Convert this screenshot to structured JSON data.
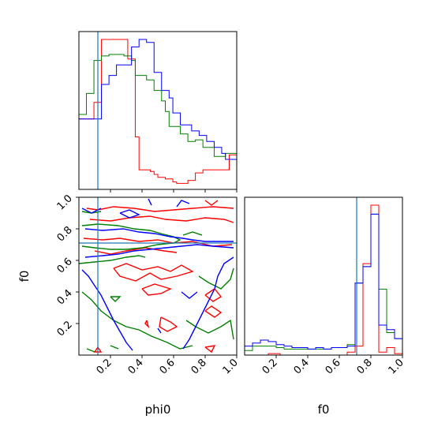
{
  "chart_data": {
    "type": "corner",
    "parameters": [
      "phi0",
      "f0"
    ],
    "axis_range": [
      0,
      1
    ],
    "ticks": [
      0.2,
      0.4,
      0.6,
      0.8,
      1.0
    ],
    "tick_labels": [
      "0.2",
      "0.4",
      "0.6",
      "0.8",
      "1.0"
    ],
    "truth": {
      "phi0": 0.12,
      "f0": 0.71,
      "color": "#1f77b4"
    },
    "series": [
      {
        "color": "#ff0000",
        "phi0_hist": [
          0.47,
          0.47,
          0.47,
          0.47,
          0.58,
          0.58,
          1.0,
          1.0,
          1.0,
          1.0,
          1.0,
          1.0,
          1.0,
          0.87,
          0.87,
          0.35,
          0.13,
          0.13,
          0.13,
          0.12,
          0.1,
          0.08,
          0.08,
          0.07,
          0.07,
          0.05,
          0.04,
          0.04,
          0.04,
          0.06,
          0.06,
          0.11,
          0.11,
          0.13,
          0.13,
          0.13,
          0.13,
          0.13,
          0.13,
          0.13,
          0.23,
          0.23
        ],
        "f0_hist": [
          0,
          0,
          0,
          0,
          0,
          0,
          0.01,
          0.01,
          0.01,
          0,
          0,
          0,
          0,
          0,
          0,
          0,
          0,
          0,
          0,
          0,
          0,
          0,
          0,
          0,
          0,
          0,
          0.02,
          0.02,
          0.06,
          0.06,
          0.61,
          0.61,
          1.0,
          1.0,
          0.02,
          0.02,
          0.05,
          0.05,
          0.01,
          0.01
        ],
        "contours": [
          [
            [
              0.05,
              0.93
            ],
            [
              0.12,
              0.92
            ],
            [
              0.22,
              0.94
            ],
            [
              0.35,
              0.93
            ],
            [
              0.48,
              0.91
            ],
            [
              0.6,
              0.92
            ],
            [
              0.72,
              0.93
            ],
            [
              0.85,
              0.94
            ],
            [
              0.98,
              0.93
            ]
          ],
          [
            [
              0.07,
              0.86
            ],
            [
              0.2,
              0.85
            ],
            [
              0.32,
              0.87
            ],
            [
              0.45,
              0.88
            ],
            [
              0.55,
              0.86
            ],
            [
              0.68,
              0.85
            ],
            [
              0.8,
              0.87
            ],
            [
              0.92,
              0.86
            ],
            [
              0.98,
              0.84
            ]
          ],
          [
            [
              0.03,
              0.74
            ],
            [
              0.15,
              0.73
            ],
            [
              0.26,
              0.74
            ],
            [
              0.38,
              0.72
            ],
            [
              0.5,
              0.73
            ],
            [
              0.6,
              0.71
            ],
            [
              0.72,
              0.72
            ],
            [
              0.85,
              0.69
            ],
            [
              0.97,
              0.7
            ]
          ],
          [
            [
              0.1,
              0.66
            ],
            [
              0.2,
              0.64
            ],
            [
              0.3,
              0.66
            ],
            [
              0.42,
              0.68
            ],
            [
              0.54,
              0.66
            ],
            [
              0.62,
              0.65
            ]
          ],
          [
            [
              0.22,
              0.55
            ],
            [
              0.3,
              0.58
            ],
            [
              0.4,
              0.54
            ],
            [
              0.5,
              0.56
            ],
            [
              0.58,
              0.53
            ],
            [
              0.65,
              0.57
            ],
            [
              0.72,
              0.53
            ],
            [
              0.62,
              0.5
            ],
            [
              0.52,
              0.48
            ],
            [
              0.45,
              0.52
            ],
            [
              0.36,
              0.47
            ],
            [
              0.26,
              0.5
            ],
            [
              0.22,
              0.55
            ]
          ],
          [
            [
              0.4,
              0.42
            ],
            [
              0.48,
              0.45
            ],
            [
              0.58,
              0.42
            ],
            [
              0.52,
              0.39
            ],
            [
              0.44,
              0.38
            ],
            [
              0.4,
              0.42
            ]
          ],
          [
            [
              0.52,
              0.24
            ],
            [
              0.58,
              0.21
            ],
            [
              0.62,
              0.18
            ],
            [
              0.56,
              0.15
            ],
            [
              0.51,
              0.18
            ],
            [
              0.52,
              0.24
            ]
          ],
          [
            [
              0.43,
              0.22
            ],
            [
              0.44,
              0.18
            ],
            [
              0.42,
              0.2
            ],
            [
              0.43,
              0.22
            ]
          ],
          [
            [
              0.8,
              0.38
            ],
            [
              0.85,
              0.34
            ],
            [
              0.9,
              0.37
            ],
            [
              0.86,
              0.42
            ],
            [
              0.8,
              0.38
            ]
          ],
          [
            [
              0.8,
              0.28
            ],
            [
              0.86,
              0.24
            ],
            [
              0.9,
              0.27
            ],
            [
              0.84,
              0.31
            ],
            [
              0.8,
              0.28
            ]
          ],
          [
            [
              0.8,
              0.05
            ],
            [
              0.84,
              0.02
            ],
            [
              0.86,
              0.06
            ],
            [
              0.8,
              0.05
            ]
          ],
          [
            [
              0.12,
              0.05
            ],
            [
              0.1,
              0.02
            ],
            [
              0.14,
              0.02
            ],
            [
              0.12,
              0.05
            ]
          ],
          [
            [
              0.8,
              0.98
            ],
            [
              0.84,
              0.95
            ],
            [
              0.88,
              0.98
            ]
          ]
        ]
      },
      {
        "color": "#008000",
        "phi0_hist": [
          0.5,
          0.5,
          0.64,
          0.64,
          0.86,
          0.86,
          0.89,
          0.89,
          0.9,
          0.9,
          0.9,
          0.9,
          0.89,
          0.89,
          0.86,
          0.76,
          0.76,
          0.76,
          0.73,
          0.73,
          0.66,
          0.66,
          0.59,
          0.52,
          0.42,
          0.42,
          0.42,
          0.37,
          0.37,
          0.32,
          0.32,
          0.33,
          0.33,
          0.28,
          0.28,
          0.28,
          0.22,
          0.22,
          0.22,
          0.24,
          0.24,
          0.24
        ],
        "f0_hist": [
          0.03,
          0.03,
          0.06,
          0.06,
          0.06,
          0.06,
          0.06,
          0.06,
          0.05,
          0.05,
          0.04,
          0.04,
          0.04,
          0.04,
          0.04,
          0.04,
          0.04,
          0.04,
          0.04,
          0.04,
          0.04,
          0.04,
          0.05,
          0.05,
          0.05,
          0.05,
          0.07,
          0.07,
          0.48,
          0.48,
          0.59,
          0.59,
          0.94,
          0.94,
          0.44,
          0.44,
          0.15,
          0.15,
          0.11,
          0.11
        ],
        "contours": [
          [
            [
              0.02,
              0.82
            ],
            [
              0.12,
              0.83
            ],
            [
              0.25,
              0.82
            ],
            [
              0.35,
              0.8
            ],
            [
              0.45,
              0.79
            ],
            [
              0.52,
              0.77
            ],
            [
              0.6,
              0.75
            ],
            [
              0.64,
              0.73
            ],
            [
              0.6,
              0.71
            ],
            [
              0.5,
              0.7
            ],
            [
              0.4,
              0.68
            ],
            [
              0.3,
              0.67
            ],
            [
              0.2,
              0.67
            ],
            [
              0.1,
              0.68
            ],
            [
              0.02,
              0.69
            ]
          ],
          [
            [
              0.0,
              0.58
            ],
            [
              0.1,
              0.59
            ],
            [
              0.2,
              0.6
            ],
            [
              0.3,
              0.62
            ],
            [
              0.38,
              0.63
            ],
            [
              0.42,
              0.62
            ]
          ],
          [
            [
              0.02,
              0.4
            ],
            [
              0.08,
              0.35
            ],
            [
              0.14,
              0.28
            ],
            [
              0.22,
              0.22
            ],
            [
              0.3,
              0.18
            ],
            [
              0.38,
              0.16
            ],
            [
              0.46,
              0.12
            ],
            [
              0.56,
              0.08
            ],
            [
              0.64,
              0.04
            ],
            [
              0.72,
              0.06
            ]
          ],
          [
            [
              0.68,
              0.22
            ],
            [
              0.74,
              0.18
            ],
            [
              0.82,
              0.14
            ],
            [
              0.9,
              0.18
            ],
            [
              0.96,
              0.22
            ],
            [
              0.98,
              0.1
            ]
          ],
          [
            [
              0.76,
              0.5
            ],
            [
              0.82,
              0.46
            ],
            [
              0.9,
              0.42
            ],
            [
              0.96,
              0.48
            ],
            [
              0.98,
              0.55
            ]
          ],
          [
            [
              0.02,
              0.91
            ],
            [
              0.08,
              0.9
            ],
            [
              0.14,
              0.91
            ]
          ],
          [
            [
              0.66,
              0.76
            ],
            [
              0.72,
              0.78
            ],
            [
              0.78,
              0.76
            ]
          ],
          [
            [
              0.2,
              0.37
            ],
            [
              0.23,
              0.34
            ],
            [
              0.26,
              0.37
            ],
            [
              0.2,
              0.37
            ]
          ],
          [
            [
              0.05,
              0.04
            ],
            [
              0.1,
              0.02
            ]
          ],
          [
            [
              0.2,
              0.06
            ],
            [
              0.25,
              0.04
            ]
          ]
        ]
      },
      {
        "color": "#0000ff",
        "phi0_hist": [
          0.47,
          0.47,
          0.47,
          0.47,
          0.47,
          0.47,
          0.7,
          0.7,
          0.76,
          0.76,
          0.83,
          0.83,
          0.83,
          0.83,
          0.95,
          0.95,
          1.0,
          1.0,
          0.98,
          0.98,
          0.78,
          0.78,
          0.66,
          0.66,
          0.61,
          0.51,
          0.51,
          0.43,
          0.43,
          0.43,
          0.39,
          0.39,
          0.36,
          0.36,
          0.32,
          0.32,
          0.28,
          0.28,
          0.24,
          0.2,
          0.2,
          0.2
        ],
        "f0_hist": [
          0.06,
          0.06,
          0.08,
          0.08,
          0.1,
          0.1,
          0.09,
          0.09,
          0.07,
          0.07,
          0.06,
          0.06,
          0.05,
          0.05,
          0.05,
          0.05,
          0.04,
          0.04,
          0.05,
          0.05,
          0.04,
          0.04,
          0.05,
          0.05,
          0.05,
          0.05,
          0.06,
          0.06,
          0.48,
          0.48,
          0.59,
          0.59,
          0.94,
          0.94,
          0.2,
          0.2,
          0.17,
          0.17,
          0.11,
          0.11
        ],
        "contours": [
          [
            [
              0.04,
              0.8
            ],
            [
              0.15,
              0.79
            ],
            [
              0.28,
              0.8
            ],
            [
              0.38,
              0.78
            ],
            [
              0.48,
              0.77
            ],
            [
              0.58,
              0.75
            ],
            [
              0.66,
              0.74
            ],
            [
              0.72,
              0.73
            ],
            [
              0.8,
              0.72
            ],
            [
              0.9,
              0.72
            ],
            [
              0.98,
              0.72
            ]
          ],
          [
            [
              0.04,
              0.62
            ],
            [
              0.15,
              0.63
            ],
            [
              0.25,
              0.64
            ],
            [
              0.35,
              0.66
            ],
            [
              0.45,
              0.67
            ],
            [
              0.55,
              0.68
            ],
            [
              0.65,
              0.69
            ],
            [
              0.75,
              0.7
            ],
            [
              0.85,
              0.69
            ],
            [
              0.98,
              0.68
            ]
          ],
          [
            [
              0.02,
              0.54
            ],
            [
              0.06,
              0.5
            ],
            [
              0.1,
              0.44
            ],
            [
              0.14,
              0.38
            ],
            [
              0.18,
              0.3
            ],
            [
              0.22,
              0.22
            ],
            [
              0.26,
              0.15
            ],
            [
              0.3,
              0.08
            ],
            [
              0.34,
              0.03
            ]
          ],
          [
            [
              0.98,
              0.62
            ],
            [
              0.92,
              0.58
            ],
            [
              0.88,
              0.5
            ],
            [
              0.86,
              0.42
            ],
            [
              0.82,
              0.34
            ],
            [
              0.78,
              0.26
            ],
            [
              0.74,
              0.18
            ],
            [
              0.7,
              0.1
            ],
            [
              0.66,
              0.04
            ]
          ],
          [
            [
              0.26,
              0.9
            ],
            [
              0.32,
              0.87
            ],
            [
              0.38,
              0.89
            ],
            [
              0.32,
              0.92
            ],
            [
              0.26,
              0.9
            ]
          ],
          [
            [
              0.02,
              0.93
            ],
            [
              0.08,
              0.9
            ],
            [
              0.14,
              0.93
            ]
          ],
          [
            [
              0.65,
              0.4
            ],
            [
              0.7,
              0.36
            ],
            [
              0.75,
              0.4
            ]
          ],
          [
            [
              0.62,
              0.94
            ],
            [
              0.65,
              0.98
            ],
            [
              0.7,
              0.96
            ]
          ],
          [
            [
              0.5,
              0.17
            ],
            [
              0.52,
              0.14
            ]
          ],
          [
            [
              0.44,
              0.99
            ],
            [
              0.46,
              0.95
            ]
          ]
        ]
      }
    ]
  }
}
